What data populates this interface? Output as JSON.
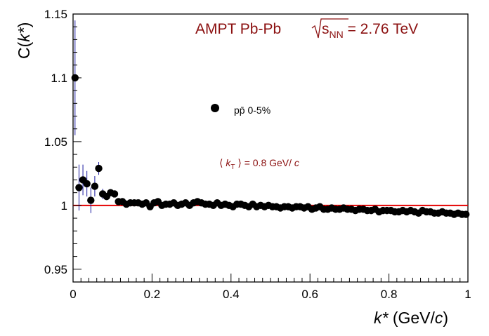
{
  "chart_data": {
    "type": "scatter",
    "title": "AMPT Pb-Pb",
    "energy": {
      "sqrt": "s",
      "sub": "NN",
      "value": " = 2.76 TeV"
    },
    "xlabel": {
      "var": "k*",
      "unit_open": " (GeV/",
      "unit_var": "c",
      "unit_close": ")"
    },
    "ylabel": {
      "prefix": "C(",
      "var": "k*",
      "suffix": ")"
    },
    "xlim": [
      0,
      1
    ],
    "ylim": [
      0.94,
      1.15
    ],
    "grid": false,
    "x_ticks": [
      0,
      0.2,
      0.4,
      0.6,
      0.8,
      1
    ],
    "x_tick_labels": [
      "0",
      "0.2",
      "0.4",
      "0.6",
      "0.8",
      "1"
    ],
    "y_ticks": [
      0.95,
      1,
      1.05,
      1.1,
      1.15
    ],
    "y_tick_labels": [
      "0.95",
      "1",
      "1.05",
      "1.1",
      "1.15"
    ],
    "legend": {
      "placement": "upper-center",
      "label": "pp̄ 0-5%"
    },
    "annotation": {
      "open": "⟨ ",
      "var": "k",
      "sub": "T",
      "close": " ⟩ = 0.8 GeV/ ",
      "unit": "c"
    },
    "reference_line": {
      "y": 1,
      "color": "#e60000"
    },
    "colors": {
      "title": "#8b1010",
      "markers": "#000000",
      "error_bars": "#1a1aa0",
      "reference": "#e60000"
    },
    "series": [
      {
        "name": "pp̄ 0-5%",
        "x": [
          0.005,
          0.015,
          0.025,
          0.035,
          0.045,
          0.055,
          0.065,
          0.075,
          0.085,
          0.095,
          0.105,
          0.115,
          0.125,
          0.135,
          0.145,
          0.155,
          0.165,
          0.175,
          0.185,
          0.195,
          0.205,
          0.215,
          0.225,
          0.235,
          0.245,
          0.255,
          0.265,
          0.275,
          0.285,
          0.295,
          0.305,
          0.315,
          0.325,
          0.335,
          0.345,
          0.355,
          0.365,
          0.375,
          0.385,
          0.395,
          0.405,
          0.415,
          0.425,
          0.435,
          0.445,
          0.455,
          0.465,
          0.475,
          0.485,
          0.495,
          0.505,
          0.515,
          0.525,
          0.535,
          0.545,
          0.555,
          0.565,
          0.575,
          0.585,
          0.595,
          0.605,
          0.615,
          0.625,
          0.635,
          0.645,
          0.655,
          0.665,
          0.675,
          0.685,
          0.695,
          0.705,
          0.715,
          0.725,
          0.735,
          0.745,
          0.755,
          0.765,
          0.775,
          0.785,
          0.795,
          0.805,
          0.815,
          0.825,
          0.835,
          0.845,
          0.855,
          0.865,
          0.875,
          0.885,
          0.895,
          0.905,
          0.915,
          0.925,
          0.935,
          0.945,
          0.955,
          0.965,
          0.975,
          0.985,
          0.995
        ],
        "y": [
          1.1,
          1.014,
          1.02,
          1.017,
          1.004,
          1.015,
          1.029,
          1.009,
          1.007,
          1.01,
          1.009,
          1.003,
          1.003,
          1.001,
          1.002,
          1.002,
          1.002,
          1.001,
          1.002,
          0.999,
          1.002,
          1.003,
          1.0,
          1.001,
          1.001,
          1.002,
          1.0,
          1.001,
          1.002,
          1.0,
          1.002,
          1.003,
          1.002,
          1.001,
          1.001,
          1.0,
          1.002,
          1.0,
          1.001,
          1.0,
          0.999,
          1.001,
          1.001,
          1.0,
          0.999,
          1.001,
          0.999,
          1.0,
          0.999,
          1.0,
          0.999,
          0.999,
          0.998,
          0.999,
          0.999,
          0.998,
          0.999,
          0.999,
          0.998,
          0.999,
          0.997,
          0.998,
          0.999,
          0.997,
          0.997,
          0.998,
          0.997,
          0.997,
          0.998,
          0.997,
          0.997,
          0.996,
          0.997,
          0.997,
          0.996,
          0.996,
          0.997,
          0.995,
          0.996,
          0.996,
          0.996,
          0.995,
          0.995,
          0.996,
          0.995,
          0.996,
          0.995,
          0.994,
          0.996,
          0.995,
          0.995,
          0.994,
          0.994,
          0.995,
          0.994,
          0.994,
          0.993,
          0.994,
          0.993,
          0.993
        ],
        "err": [
          0.045,
          0.018,
          0.012,
          0.01,
          0.01,
          0.008,
          0.005,
          0.004,
          0.003,
          0.003,
          0.002,
          0.002,
          0.002,
          0.002,
          0.001,
          0.001,
          0.001,
          0.001,
          0.001,
          0.001,
          0.001,
          0.001,
          0.001,
          0.001,
          0.001,
          0.001,
          0.001,
          0.001,
          0.001,
          0.001,
          0.001,
          0.001,
          0.001,
          0.001,
          0.001,
          0.001,
          0.001,
          0.001,
          0.001,
          0.001,
          0.001,
          0.001,
          0.001,
          0.001,
          0.001,
          0.001,
          0.001,
          0.001,
          0.001,
          0.001,
          0.001,
          0.001,
          0.001,
          0.001,
          0.001,
          0.001,
          0.001,
          0.001,
          0.001,
          0.001,
          0.001,
          0.001,
          0.001,
          0.001,
          0.001,
          0.001,
          0.001,
          0.001,
          0.001,
          0.001,
          0.001,
          0.001,
          0.001,
          0.001,
          0.001,
          0.001,
          0.001,
          0.001,
          0.001,
          0.001,
          0.001,
          0.001,
          0.001,
          0.001,
          0.001,
          0.001,
          0.001,
          0.001,
          0.001,
          0.001,
          0.001,
          0.001,
          0.001,
          0.001,
          0.001,
          0.001,
          0.001,
          0.001,
          0.001,
          0.001
        ]
      }
    ]
  }
}
